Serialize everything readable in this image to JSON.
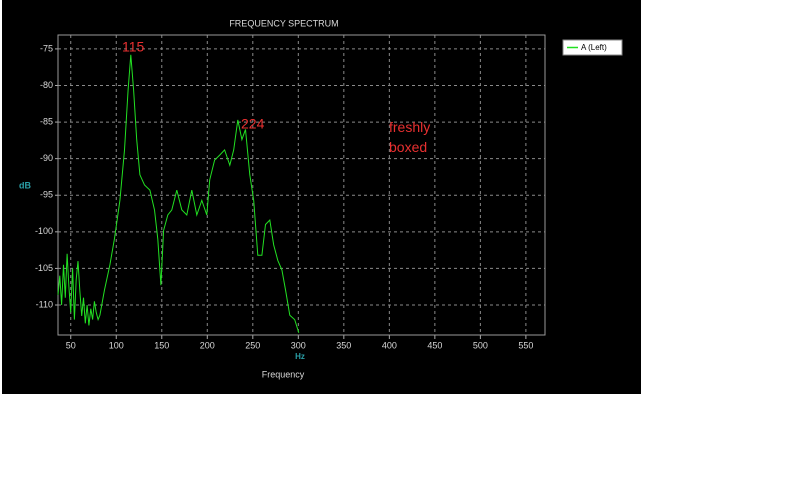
{
  "chart_data": {
    "type": "line",
    "title": "FREQUENCY SPECTRUM",
    "x_label": "Frequency",
    "x_unit": "Hz",
    "y_label": "dB",
    "xlim": [
      36,
      571
    ],
    "ylim": [
      -114.1,
      -73.1
    ],
    "xticks": [
      50,
      100,
      150,
      200,
      250,
      300,
      350,
      400,
      450,
      500,
      550
    ],
    "yticks": [
      -75,
      -80,
      -85,
      -90,
      -95,
      -100,
      -105,
      -110
    ],
    "grid": true,
    "legend": "top-right",
    "annotations": [
      {
        "text": "115"
      },
      {
        "text": "224"
      },
      {
        "text": "freshly boxed"
      }
    ],
    "x": [
      36,
      38,
      40,
      42,
      44,
      46,
      48,
      50,
      52,
      54,
      56,
      58,
      60,
      62,
      64,
      66,
      68,
      70,
      72,
      74,
      76,
      78,
      80,
      82,
      87,
      93,
      98,
      104,
      109,
      113,
      116,
      119,
      122.5,
      126,
      131,
      137,
      142,
      145.6,
      149,
      152,
      156.6,
      161,
      166.5,
      172,
      177.5,
      183,
      188.5,
      194,
      199.5,
      202.7,
      208,
      213.7,
      219,
      224.7,
      229,
      233.5,
      238,
      242,
      246.7,
      251,
      255.5,
      260,
      264,
      268.7,
      273,
      277.5,
      282,
      286,
      290.7,
      296,
      300.5
    ],
    "series": [
      {
        "name": "A (Left)",
        "color": "#22e022",
        "values": [
          -108.6,
          -106,
          -110,
          -104.5,
          -109,
          -103,
          -107.5,
          -111,
          -105,
          -112,
          -106.5,
          -104,
          -108,
          -111.5,
          -109,
          -112.5,
          -110,
          -112.8,
          -110.5,
          -112,
          -109.5,
          -111,
          -112,
          -111.4,
          -108,
          -104.5,
          -101,
          -95.7,
          -88.8,
          -80.6,
          -75.8,
          -80.6,
          -87.4,
          -92.2,
          -93.6,
          -94.3,
          -97,
          -101,
          -107.3,
          -99.8,
          -97.7,
          -97,
          -94.3,
          -97,
          -97.7,
          -94.3,
          -97.7,
          -95.7,
          -97.7,
          -92.9,
          -90.2,
          -89.5,
          -88.8,
          -90.9,
          -88.8,
          -84.7,
          -87.4,
          -86,
          -92.2,
          -95.7,
          -103.2,
          -103.2,
          -99,
          -98.4,
          -101.8,
          -103.9,
          -105.2,
          -108,
          -111.4,
          -112,
          -113.8
        ]
      }
    ]
  }
}
